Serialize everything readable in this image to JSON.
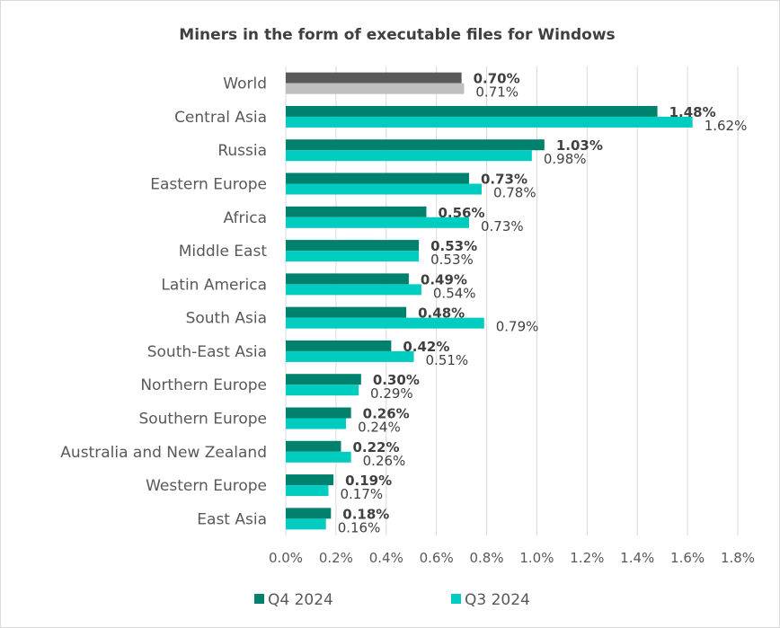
{
  "chart_data": {
    "type": "bar",
    "orientation": "horizontal",
    "title": "Miners in the form of executable files for Windows",
    "xlabel": "",
    "ylabel": "",
    "xlim": [
      0,
      1.8
    ],
    "x_ticks": [
      "0.0%",
      "0.2%",
      "0.4%",
      "0.6%",
      "0.8%",
      "1.0%",
      "1.2%",
      "1.4%",
      "1.6%",
      "1.8%"
    ],
    "grid": true,
    "legend_position": "bottom",
    "categories": [
      "World",
      "Central Asia",
      "Russia",
      "Eastern Europe",
      "Africa",
      "Middle East",
      "Latin America",
      "South Asia",
      "South-East Asia",
      "Northern Europe",
      "Southern Europe",
      "Australia and New Zealand",
      "Western Europe",
      "East Asia"
    ],
    "series": [
      {
        "name": "Q4 2024",
        "color": "#00816d",
        "highlight_color": "#595959",
        "values": [
          0.7,
          1.48,
          1.03,
          0.73,
          0.56,
          0.53,
          0.49,
          0.48,
          0.42,
          0.3,
          0.26,
          0.22,
          0.19,
          0.18
        ],
        "labels": [
          "0.70%",
          "1.48%",
          "1.03%",
          "0.73%",
          "0.56%",
          "0.53%",
          "0.49%",
          "0.48%",
          "0.42%",
          "0.30%",
          "0.26%",
          "0.22%",
          "0.19%",
          "0.18%"
        ]
      },
      {
        "name": "Q3 2024",
        "color": "#00ccc0",
        "highlight_color": "#bfbfbf",
        "values": [
          0.71,
          1.62,
          0.98,
          0.78,
          0.73,
          0.53,
          0.54,
          0.79,
          0.51,
          0.29,
          0.24,
          0.26,
          0.17,
          0.16
        ],
        "labels": [
          "0.71%",
          "1.62%",
          "0.98%",
          "0.78%",
          "0.73%",
          "0.53%",
          "0.54%",
          "0.79%",
          "0.51%",
          "0.29%",
          "0.24%",
          "0.26%",
          "0.17%",
          "0.16%"
        ]
      }
    ]
  }
}
